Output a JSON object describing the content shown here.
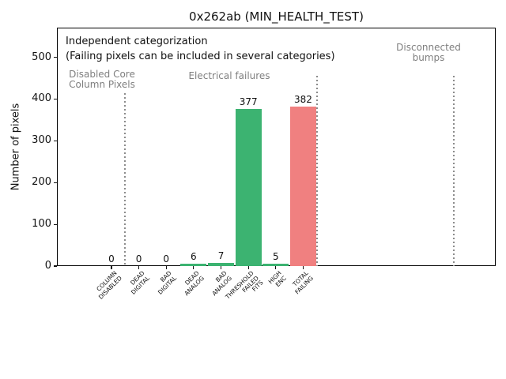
{
  "chart_data": {
    "type": "bar",
    "title": "0x262ab (MIN_HEALTH_TEST)",
    "ylabel": "Number of pixels",
    "ylim": [
      0,
      571
    ],
    "yticks": [
      0,
      100,
      200,
      300,
      400,
      500
    ],
    "categories": [
      "COLUMN\nDISABLED",
      "DEAD\nDIGITAL",
      "BAD\nDIGITAL",
      "DEAD\nANALOG",
      "BAD\nANALOG",
      "THRESHOLD\nFAILED\nFITS",
      "HIGH\nENC",
      "TOTAL\nFAILING"
    ],
    "values": [
      0,
      0,
      0,
      6,
      7,
      377,
      5,
      382
    ],
    "bar_colors": [
      "#3cb371",
      "#3cb371",
      "#3cb371",
      "#3cb371",
      "#3cb371",
      "#3cb371",
      "#3cb371",
      "#f08080"
    ],
    "annotations": [
      "Independent categorization",
      "(Failing pixels can be included in several categories)"
    ],
    "group_labels": [
      {
        "text": "Disabled Core\nColumn Pixels"
      },
      {
        "text": "Electrical failures"
      },
      {
        "text": "Disconnected\nbumps"
      }
    ],
    "separator_positions": [
      0.5,
      7.5,
      12.5
    ],
    "colors": {
      "bar_green": "#3cb371",
      "bar_red": "#f08080",
      "gray_text": "#7f7f7f",
      "separator_gray": "#8c8c8c"
    },
    "legend": null,
    "grid": false
  }
}
